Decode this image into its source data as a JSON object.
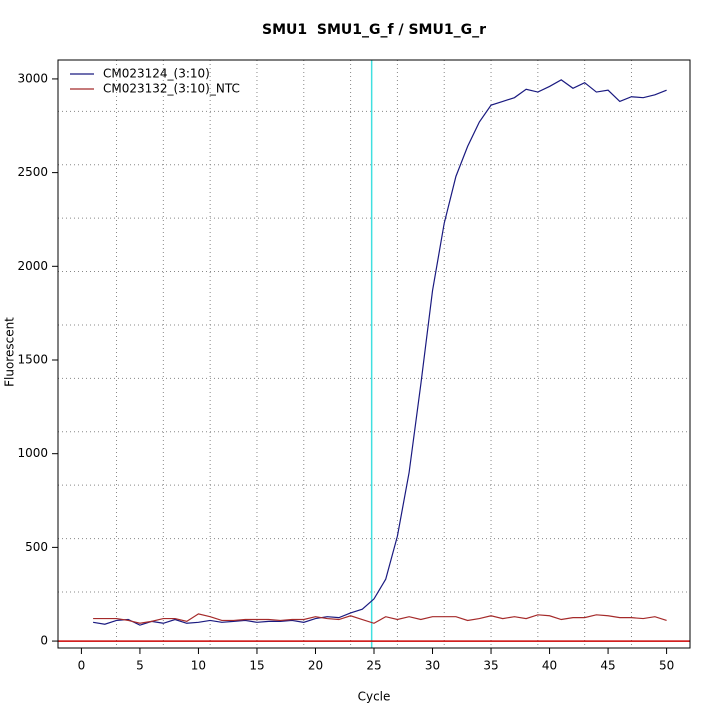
{
  "chart_data": {
    "type": "line",
    "title": "SMU1  SMU1_G_f / SMU1_G_r",
    "x_label": "Cycle",
    "y_label": "Fluorescent",
    "x": [
      1,
      2,
      3,
      4,
      5,
      6,
      7,
      8,
      9,
      10,
      11,
      12,
      13,
      14,
      15,
      16,
      17,
      18,
      19,
      20,
      21,
      22,
      23,
      24,
      25,
      26,
      27,
      28,
      29,
      30,
      31,
      32,
      33,
      34,
      35,
      36,
      37,
      38,
      39,
      40,
      41,
      42,
      43,
      44,
      45,
      46,
      47,
      48,
      49,
      50
    ],
    "series": [
      {
        "name": "CM023124_(3:10)",
        "color": "#1a1a80",
        "values": [
          100,
          90,
          110,
          115,
          85,
          105,
          95,
          115,
          95,
          100,
          110,
          100,
          105,
          110,
          100,
          105,
          105,
          110,
          100,
          120,
          130,
          125,
          150,
          170,
          225,
          330,
          560,
          900,
          1370,
          1870,
          2230,
          2480,
          2640,
          2770,
          2860,
          2880,
          2900,
          2945,
          2930,
          2960,
          2995,
          2950,
          2980,
          2930,
          2940,
          2880,
          2905,
          2900,
          2915,
          2940
        ]
      },
      {
        "name": "CM023132_(3:10)_NTC",
        "color": "#a52a2a",
        "values": [
          120,
          120,
          120,
          110,
          95,
          105,
          120,
          120,
          105,
          145,
          130,
          110,
          110,
          115,
          115,
          115,
          110,
          115,
          115,
          130,
          120,
          115,
          135,
          115,
          95,
          130,
          115,
          130,
          115,
          130,
          130,
          130,
          110,
          120,
          135,
          120,
          130,
          120,
          140,
          135,
          115,
          125,
          125,
          140,
          135,
          125,
          125,
          120,
          130,
          110
        ]
      }
    ],
    "xlim": [
      -2,
      52
    ],
    "ylim": [
      -37,
      3101
    ],
    "xticks": [
      0,
      5,
      10,
      15,
      20,
      25,
      30,
      35,
      40,
      45,
      50
    ],
    "yticks": [
      0,
      500,
      1000,
      1500,
      2000,
      2500,
      3000
    ],
    "xgrid": [
      3,
      7,
      11,
      15,
      19,
      23,
      27,
      31,
      35,
      39,
      43,
      47
    ],
    "ygrid": [
      262,
      547,
      832,
      1117,
      1402,
      1687,
      1972,
      2257,
      2542,
      2827
    ],
    "threshold_x": 24.8,
    "threshold_x_color": "#40e0e0",
    "baseline_y": 0,
    "baseline_y_color": "#cc0000",
    "legend": "top-left"
  }
}
